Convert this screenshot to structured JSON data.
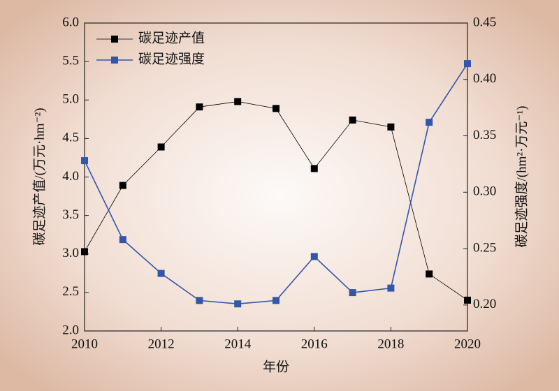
{
  "chart_data": {
    "type": "line",
    "x": [
      2010,
      2011,
      2012,
      2013,
      2014,
      2015,
      2016,
      2017,
      2018,
      2019,
      2020
    ],
    "xlim": [
      2010,
      2020
    ],
    "xticks": [
      2010,
      2012,
      2014,
      2016,
      2018,
      2020
    ],
    "xlabel": "年份",
    "ylabel": "碳足迹产值/(万元·hm⁻²)",
    "y2label": "碳足迹强度/(hm²·万元⁻¹)",
    "ylim": [
      2,
      6
    ],
    "yticks": [
      {
        "value": 2,
        "label": "2.0"
      },
      2.5,
      {
        "value": 3,
        "label": "3.0"
      },
      3.5,
      {
        "value": 4,
        "label": "4.0"
      },
      4.5,
      {
        "value": 5,
        "label": "5.0"
      },
      5.5,
      {
        "value": 6,
        "label": "6.0"
      }
    ],
    "y2lim": [
      0.177,
      0.45
    ],
    "y2ticks": [
      {
        "value": 0.2,
        "label": "0.20"
      },
      0.25,
      {
        "value": 0.3,
        "label": "0.30"
      },
      0.35,
      {
        "value": 0.4,
        "label": "0.40"
      },
      0.45
    ],
    "legend": "upper left",
    "series": [
      {
        "name": "碳足迹产值",
        "color": "#000000",
        "values": [
          3.03,
          3.89,
          4.39,
          4.91,
          4.98,
          4.89,
          4.11,
          4.74,
          4.65,
          2.74,
          2.4
        ]
      },
      {
        "name": "碳足迹强度",
        "color": "#3355aa",
        "axis": "y2",
        "values": [
          0.328,
          0.258,
          0.228,
          0.204,
          0.201,
          0.204,
          0.243,
          0.211,
          0.215,
          0.362,
          0.414
        ]
      }
    ]
  }
}
